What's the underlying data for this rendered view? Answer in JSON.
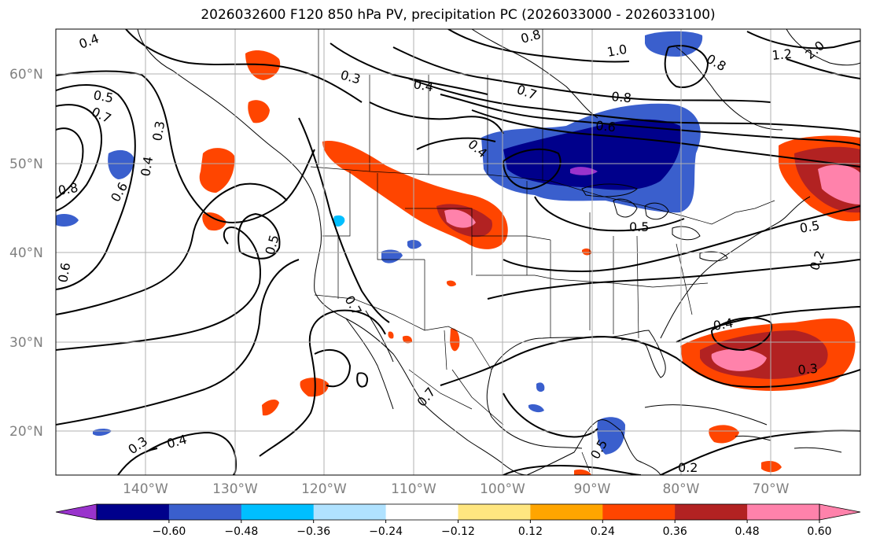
{
  "title": "2026032600 F120 850 hPa PV, precipitation PC (2026033000 - 2026033100)",
  "lat_ticks": [
    "60°N",
    "50°N",
    "40°N",
    "30°N",
    "20°N"
  ],
  "lon_ticks": [
    "140°W",
    "130°W",
    "120°W",
    "110°W",
    "100°W",
    "90°W",
    "80°W",
    "70°W"
  ],
  "colorbar": {
    "labels": [
      "−0.60",
      "−0.48",
      "−0.36",
      "−0.24",
      "−0.12",
      "0.12",
      "0.24",
      "0.36",
      "0.48",
      "0.60"
    ],
    "colors": [
      "#9933cc",
      "#00008b",
      "#3a5fcd",
      "#00bfff",
      "#b0e2ff",
      "#ffffff",
      "#ffe680",
      "#ffa500",
      "#ff4500",
      "#b22222",
      "#ff82ab",
      "#ff82ab"
    ]
  },
  "contour_labels": [
    {
      "text": "0.4"
    },
    {
      "text": "0.3"
    },
    {
      "text": "0.4"
    },
    {
      "text": "0.8"
    },
    {
      "text": "1.0"
    },
    {
      "text": "0.8"
    },
    {
      "text": "1.2"
    },
    {
      "text": "2.0"
    },
    {
      "text": "0.5"
    },
    {
      "text": "0.7"
    },
    {
      "text": "0.3"
    },
    {
      "text": "0.4"
    },
    {
      "text": "0.8"
    },
    {
      "text": "0.7"
    },
    {
      "text": "0.8"
    },
    {
      "text": "0.6"
    },
    {
      "text": "0.4"
    },
    {
      "text": "0.6"
    },
    {
      "text": "0.5"
    },
    {
      "text": "0.5"
    },
    {
      "text": "0.6"
    },
    {
      "text": "0.5"
    },
    {
      "text": "0.2"
    },
    {
      "text": "0.7"
    },
    {
      "text": "0.4"
    },
    {
      "text": "0.3"
    },
    {
      "text": "0.7"
    },
    {
      "text": "0.3"
    },
    {
      "text": "0.4"
    },
    {
      "text": "0.2"
    },
    {
      "text": "0.5"
    }
  ]
}
